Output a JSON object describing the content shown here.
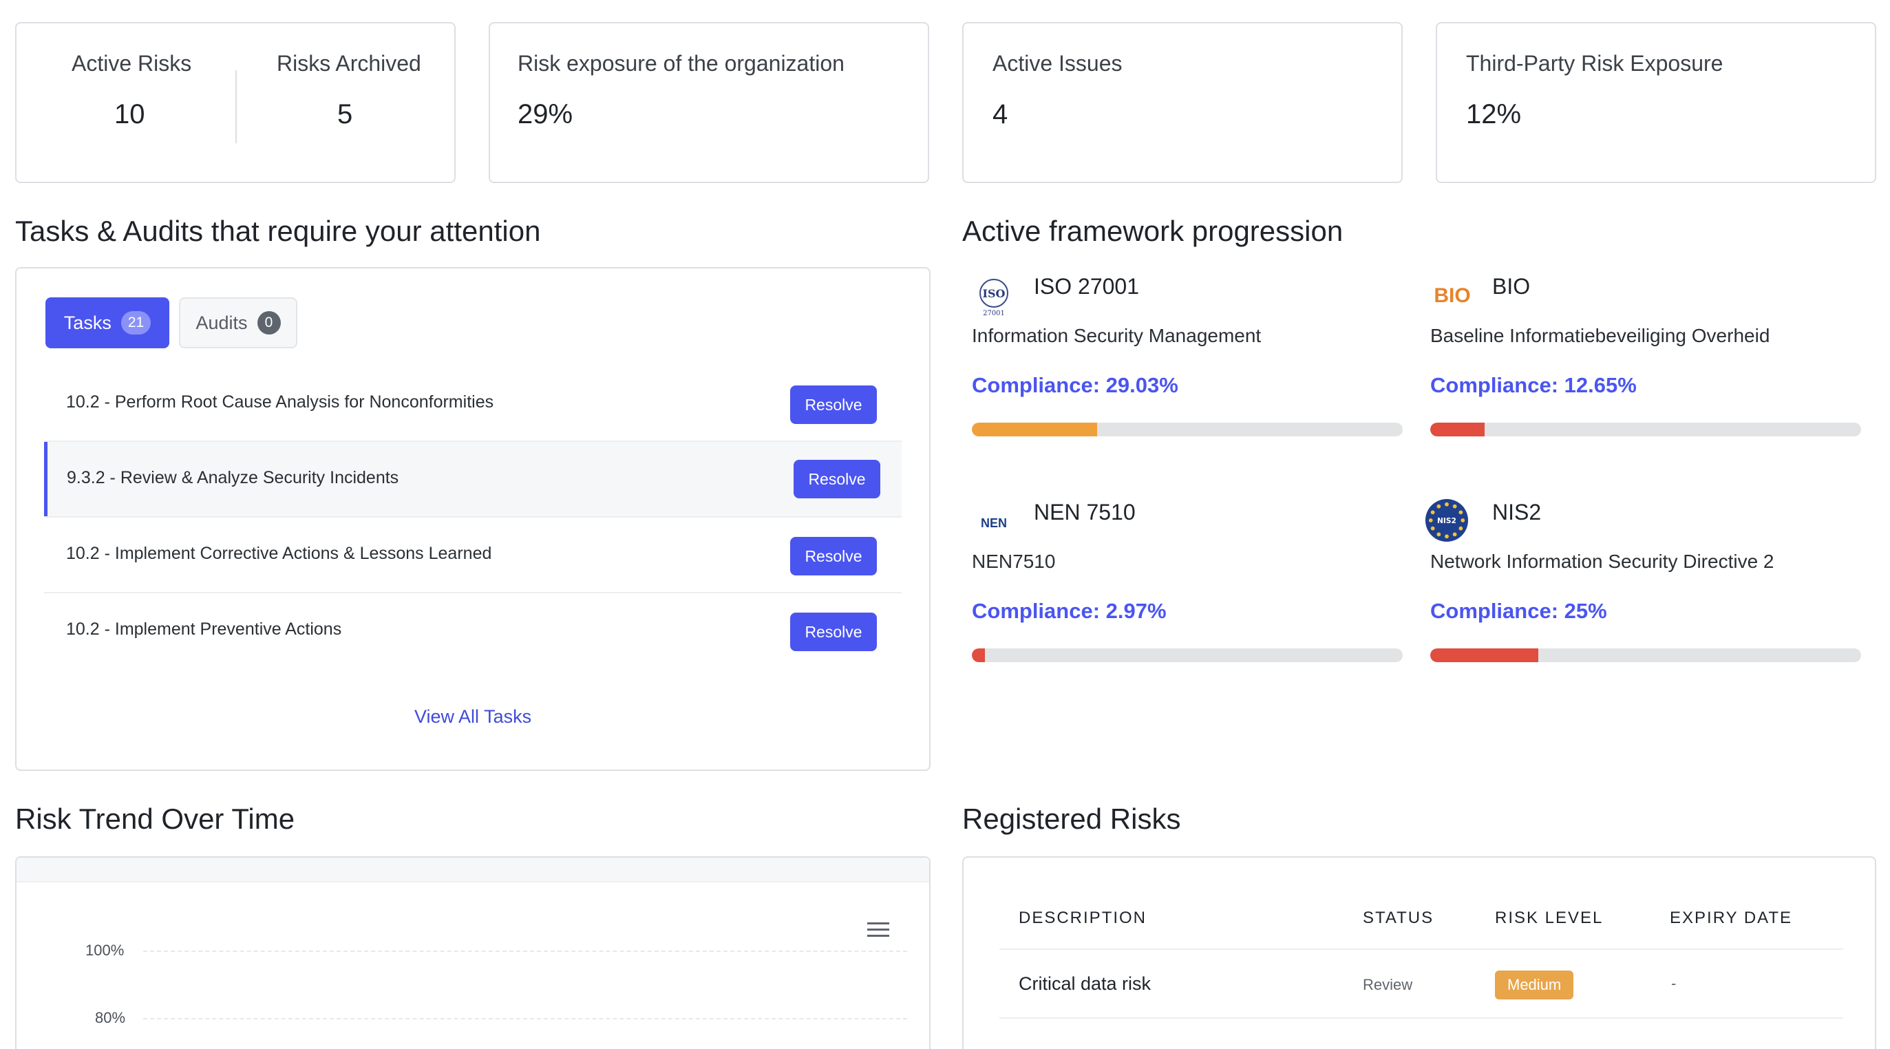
{
  "stats": {
    "active_risks": {
      "label": "Active Risks",
      "value": "10"
    },
    "risks_archived": {
      "label": "Risks Archived",
      "value": "5"
    },
    "risk_exposure": {
      "label": "Risk exposure of the organization",
      "value": "29%"
    },
    "active_issues": {
      "label": "Active Issues",
      "value": "4"
    },
    "third_party": {
      "label": "Third-Party Risk Exposure",
      "value": "12%"
    }
  },
  "tasks_section": {
    "title": "Tasks & Audits that require your attention",
    "tabs": [
      {
        "label": "Tasks",
        "count": "21"
      },
      {
        "label": "Audits",
        "count": "0"
      }
    ],
    "tasks": [
      "10.2 - Perform Root Cause Analysis for Nonconformities",
      "9.3.2 - Review & Analyze Security Incidents",
      "10.2 - Implement Corrective Actions & Lessons Learned",
      "10.2 - Implement Preventive Actions"
    ],
    "resolve_label": "Resolve",
    "view_all": "View All Tasks"
  },
  "frameworks_section": {
    "title": "Active framework progression",
    "frameworks": [
      {
        "name": "ISO 27001",
        "desc": "Information Security Management",
        "compliance": "Compliance: 29.03%",
        "percent": 29.03,
        "bar_color": "#f0a03a",
        "logo_text": "ISO",
        "logo_icon": "iso-logo-icon"
      },
      {
        "name": "BIO",
        "desc": "Baseline Informatiebeveiliging Overheid",
        "compliance": "Compliance: 12.65%",
        "percent": 12.65,
        "bar_color": "#e14d3f",
        "logo_text": "BIO",
        "logo_icon": "bio-logo-icon"
      },
      {
        "name": "NEN 7510",
        "desc": "NEN7510",
        "compliance": "Compliance: 2.97%",
        "percent": 2.97,
        "bar_color": "#e14d3f",
        "logo_text": "NEN",
        "logo_icon": "nen-logo-icon"
      },
      {
        "name": "NIS2",
        "desc": "Network Information Security Directive 2",
        "compliance": "Compliance: 25%",
        "percent": 25,
        "bar_color": "#e14d3f",
        "logo_text": "NIS2",
        "logo_icon": "nis2-logo-icon"
      }
    ]
  },
  "risk_trend": {
    "title": "Risk Trend Over Time",
    "menu_icon": "hamburger-menu-icon",
    "y_ticks": [
      "100%",
      "80%"
    ]
  },
  "registered_risks": {
    "title": "Registered Risks",
    "columns": [
      "DESCRIPTION",
      "STATUS",
      "RISK LEVEL",
      "EXPIRY DATE"
    ],
    "rows": [
      {
        "description": "Critical data risk",
        "status": "Review",
        "level": "Medium",
        "expiry": "-"
      }
    ]
  },
  "colors": {
    "accent": "#4a55f0",
    "medium": "#e8a54a"
  }
}
